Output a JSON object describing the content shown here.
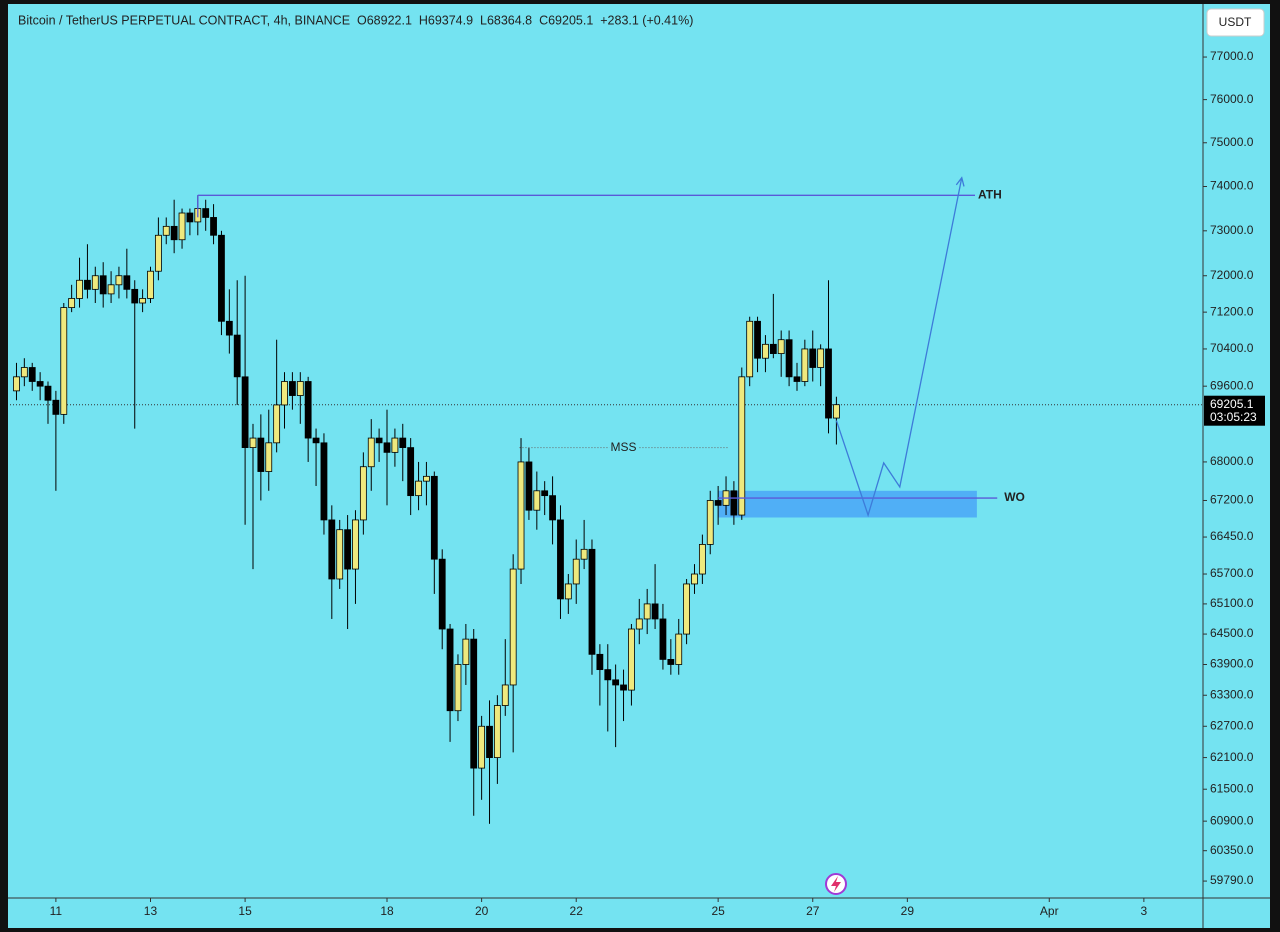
{
  "chart_data": {
    "type": "candlestick",
    "header": "Bitcoin / TetherUS PERPETUAL CONTRACT, 4h, BINANCE  O68922.1  H69374.9  L68364.8  C69205.1  +283.1 (+0.41%)",
    "currency": "USDT",
    "countdown": "03:05:23",
    "log_scale": true,
    "up_color": "#efe97e",
    "down_color": "#000000",
    "xlim": [
      10.03,
      35.25
    ],
    "xticks": [
      11,
      13,
      15,
      18,
      20,
      22,
      25,
      27,
      29,
      {
        "value": 32,
        "label": "Apr"
      },
      {
        "value": 34,
        "label": "3"
      }
    ],
    "ylim": [
      59480,
      78240
    ],
    "yticks": [
      {
        "value": 77000,
        "label": "77000.0"
      },
      {
        "value": 76000,
        "label": "76000.0"
      },
      {
        "value": 75000,
        "label": "75000.0"
      },
      {
        "value": 74000,
        "label": "74000.0"
      },
      {
        "value": 73000,
        "label": "73000.0"
      },
      {
        "value": 72000,
        "label": "72000.0"
      },
      {
        "value": 71200,
        "label": "71200.0"
      },
      {
        "value": 70400,
        "label": "70400.0"
      },
      {
        "value": 69600,
        "label": "69600.0"
      },
      {
        "value": 68000,
        "label": "68000.0"
      },
      {
        "value": 67200,
        "label": "67200.0"
      },
      {
        "value": 66450,
        "label": "66450.0"
      },
      {
        "value": 65700,
        "label": "65700.0"
      },
      {
        "value": 65100,
        "label": "65100.0"
      },
      {
        "value": 64500,
        "label": "64500.0"
      },
      {
        "value": 63900,
        "label": "63900.0"
      },
      {
        "value": 63300,
        "label": "63300.0"
      },
      {
        "value": 62700,
        "label": "62700.0"
      },
      {
        "value": 62100,
        "label": "62100.0"
      },
      {
        "value": 61500,
        "label": "61500.0"
      },
      {
        "value": 60900,
        "label": "60900.0"
      },
      {
        "value": 60350,
        "label": "60350.0"
      },
      {
        "value": 59790,
        "label": "59790.0"
      }
    ],
    "x": [
      10.167,
      10.333,
      10.5,
      10.667,
      10.833,
      11,
      11.167,
      11.333,
      11.5,
      11.667,
      11.833,
      12,
      12.167,
      12.333,
      12.5,
      12.667,
      12.833,
      13,
      13.167,
      13.333,
      13.5,
      13.667,
      13.833,
      14,
      14.167,
      14.333,
      14.5,
      14.667,
      14.833,
      15,
      15.167,
      15.333,
      15.5,
      15.667,
      15.833,
      16,
      16.167,
      16.333,
      16.5,
      16.667,
      16.833,
      17,
      17.167,
      17.333,
      17.5,
      17.667,
      17.833,
      18,
      18.167,
      18.333,
      18.5,
      18.667,
      18.833,
      19,
      19.167,
      19.333,
      19.5,
      19.667,
      19.833,
      20,
      20.167,
      20.333,
      20.5,
      20.667,
      20.833,
      21,
      21.167,
      21.333,
      21.5,
      21.667,
      21.833,
      22,
      22.167,
      22.333,
      22.5,
      22.667,
      22.833,
      23,
      23.167,
      23.333,
      23.5,
      23.667,
      23.833,
      24,
      24.167,
      24.333,
      24.5,
      24.667,
      24.833,
      25,
      25.167,
      25.333,
      25.5,
      25.667,
      25.833,
      26,
      26.167,
      26.333,
      26.5,
      26.667,
      26.833,
      27,
      27.167,
      27.333,
      27.5
    ],
    "candles": [
      [
        69500,
        70100,
        69300,
        69800
      ],
      [
        69800,
        70200,
        69600,
        70000
      ],
      [
        70000,
        70100,
        69500,
        69700
      ],
      [
        69700,
        69900,
        69300,
        69600
      ],
      [
        69600,
        69700,
        68800,
        69300
      ],
      [
        69300,
        69500,
        67400,
        69000
      ],
      [
        69000,
        71400,
        68800,
        71300
      ],
      [
        71300,
        71800,
        71200,
        71500
      ],
      [
        71500,
        72400,
        71300,
        71900
      ],
      [
        71900,
        72700,
        71500,
        71700
      ],
      [
        71700,
        72200,
        71400,
        72000
      ],
      [
        72000,
        72300,
        71300,
        71600
      ],
      [
        71600,
        72100,
        71400,
        71800
      ],
      [
        71800,
        72200,
        71500,
        72000
      ],
      [
        72000,
        72600,
        71500,
        71700
      ],
      [
        71700,
        71900,
        68700,
        71400
      ],
      [
        71400,
        71700,
        71200,
        71500
      ],
      [
        71500,
        72200,
        71400,
        72100
      ],
      [
        72100,
        73300,
        71900,
        72900
      ],
      [
        72900,
        73300,
        72700,
        73100
      ],
      [
        73100,
        73700,
        72500,
        72800
      ],
      [
        72800,
        73500,
        72600,
        73400
      ],
      [
        73400,
        73500,
        72900,
        73200
      ],
      [
        73200,
        73800,
        72900,
        73500
      ],
      [
        73500,
        73700,
        73000,
        73300
      ],
      [
        73300,
        73600,
        72700,
        72900
      ],
      [
        72900,
        73000,
        70700,
        71000
      ],
      [
        71000,
        71700,
        70300,
        70700
      ],
      [
        70700,
        71900,
        69200,
        69800
      ],
      [
        69800,
        72000,
        66700,
        68300
      ],
      [
        68300,
        68800,
        65800,
        68500
      ],
      [
        68500,
        69000,
        67200,
        67800
      ],
      [
        67800,
        69100,
        67400,
        68400
      ],
      [
        68400,
        70600,
        68200,
        69200
      ],
      [
        69200,
        69900,
        68700,
        69700
      ],
      [
        69700,
        69900,
        69100,
        69400
      ],
      [
        69400,
        69900,
        68800,
        69700
      ],
      [
        69700,
        69800,
        68000,
        68500
      ],
      [
        68500,
        68700,
        67500,
        68400
      ],
      [
        68400,
        68600,
        66500,
        66800
      ],
      [
        66800,
        67100,
        64800,
        65600
      ],
      [
        65600,
        66800,
        65400,
        66600
      ],
      [
        66600,
        66900,
        64600,
        65800
      ],
      [
        65800,
        67000,
        65100,
        66800
      ],
      [
        66800,
        68200,
        66500,
        67900
      ],
      [
        67900,
        68900,
        67400,
        68500
      ],
      [
        68500,
        68700,
        68000,
        68400
      ],
      [
        68400,
        69100,
        67100,
        68200
      ],
      [
        68200,
        68700,
        67900,
        68500
      ],
      [
        68500,
        68800,
        67600,
        68300
      ],
      [
        68300,
        68500,
        66900,
        67300
      ],
      [
        67300,
        68000,
        67000,
        67600
      ],
      [
        67600,
        68000,
        67100,
        67700
      ],
      [
        67700,
        67800,
        65300,
        66000
      ],
      [
        66000,
        66200,
        64200,
        64600
      ],
      [
        64600,
        64700,
        62400,
        63000
      ],
      [
        63000,
        64100,
        62800,
        63900
      ],
      [
        63900,
        64700,
        63500,
        64400
      ],
      [
        64400,
        64600,
        61000,
        61900
      ],
      [
        61900,
        62900,
        61300,
        62700
      ],
      [
        62700,
        63200,
        60850,
        62100
      ],
      [
        62100,
        63300,
        61600,
        63100
      ],
      [
        63100,
        64400,
        62900,
        63500
      ],
      [
        63500,
        66100,
        62200,
        65800
      ],
      [
        65800,
        68500,
        65500,
        68000
      ],
      [
        68000,
        68300,
        66800,
        67000
      ],
      [
        67000,
        67800,
        66600,
        67400
      ],
      [
        67400,
        67600,
        66900,
        67300
      ],
      [
        67300,
        67700,
        66300,
        66800
      ],
      [
        66800,
        67100,
        64800,
        65200
      ],
      [
        65200,
        65700,
        64900,
        65500
      ],
      [
        65500,
        66400,
        65100,
        66000
      ],
      [
        66000,
        66800,
        65800,
        66200
      ],
      [
        66200,
        66400,
        63700,
        64100
      ],
      [
        64100,
        64300,
        63100,
        63800
      ],
      [
        63800,
        64300,
        62600,
        63600
      ],
      [
        63600,
        63900,
        62300,
        63500
      ],
      [
        63500,
        63800,
        62800,
        63400
      ],
      [
        63400,
        64700,
        63100,
        64600
      ],
      [
        64600,
        65200,
        64300,
        64800
      ],
      [
        64800,
        65400,
        64500,
        65100
      ],
      [
        65100,
        65900,
        64600,
        64800
      ],
      [
        64800,
        65100,
        63800,
        64000
      ],
      [
        64000,
        64400,
        63700,
        63900
      ],
      [
        63900,
        64800,
        63700,
        64500
      ],
      [
        64500,
        65600,
        64300,
        65500
      ],
      [
        65500,
        65900,
        65300,
        65700
      ],
      [
        65700,
        66500,
        65500,
        66300
      ],
      [
        66300,
        67400,
        66100,
        67200
      ],
      [
        67200,
        67500,
        66700,
        67100
      ],
      [
        67100,
        67700,
        66900,
        67400
      ],
      [
        67400,
        67600,
        66700,
        66900
      ],
      [
        66900,
        70000,
        66800,
        69800
      ],
      [
        69800,
        71100,
        69600,
        71000
      ],
      [
        71000,
        71100,
        69900,
        70200
      ],
      [
        70200,
        70700,
        69900,
        70500
      ],
      [
        70500,
        71600,
        70200,
        70300
      ],
      [
        70300,
        70800,
        69800,
        70600
      ],
      [
        70600,
        70800,
        69600,
        69800
      ],
      [
        69800,
        70100,
        69500,
        69700
      ],
      [
        69700,
        70600,
        69600,
        70400
      ],
      [
        70400,
        70800,
        69700,
        70000
      ],
      [
        70000,
        70500,
        69600,
        70400
      ],
      [
        70400,
        71900,
        68600,
        68922.1
      ],
      [
        68922.1,
        69374.9,
        68364.8,
        69205.1
      ]
    ],
    "annotations": {
      "ath": {
        "label": "ATH",
        "value": 73800,
        "x": [
          14.0,
          30.43
        ],
        "color": "#5a5ad8"
      },
      "mss": {
        "label": "MSS",
        "value": 68300,
        "x": [
          20.8,
          25.2
        ],
        "color": "#666666"
      },
      "wo": {
        "label": "WO",
        "zone": [
          66850,
          67400
        ],
        "value": 67250,
        "x": [
          25.0,
          30.47
        ],
        "line_end": 30.9,
        "color": "#4aa6f7",
        "line_color": "#5a5ad8"
      },
      "projection": {
        "x": [
          27.5,
          28.17,
          28.5,
          28.84,
          30.15
        ],
        "values": [
          68870,
          66900,
          67980,
          67480,
          74200
        ],
        "color": "#3d7bd9"
      }
    }
  }
}
